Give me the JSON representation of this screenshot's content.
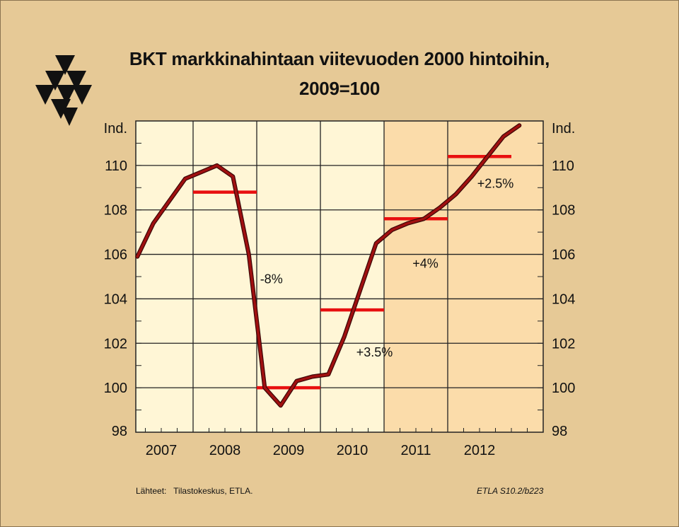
{
  "title_line1": "BKT markkinahintaan viitevuoden 2000 hintoihin,",
  "title_line2": "2009=100",
  "source_label": "Lähteet:",
  "source_text": "Tilastokeskus, ETLA.",
  "code": "ETLA S10.2/b223",
  "colors": {
    "background": "#e6c996",
    "plot_history": "#fff6d6",
    "plot_forecast": "#fbdcaa",
    "line": "#a01010",
    "averages": "#e81010"
  },
  "chart_data": {
    "type": "line",
    "title": "BKT markkinahintaan viitevuoden 2000 hintoihin, 2009=100",
    "ylabel_left": "Ind.",
    "ylabel_right": "Ind.",
    "ylim": [
      98,
      112
    ],
    "xlim": [
      2006.6,
      2013.0
    ],
    "yticks": [
      98,
      100,
      102,
      104,
      106,
      108,
      110
    ],
    "categories": [
      "2007",
      "2008",
      "2009",
      "2010",
      "2011",
      "2012"
    ],
    "forecast_start": 2010.5,
    "grid": true,
    "series": [
      {
        "x": [
          2006.625,
          2006.875,
          2007.125,
          2007.375,
          2007.625,
          2007.875,
          2008.125,
          2008.375,
          2008.625,
          2008.875,
          2009.125,
          2009.375,
          2009.625,
          2009.875,
          2010.125,
          2010.375,
          2010.625,
          2010.875,
          2011.125,
          2011.375,
          2011.625,
          2011.875,
          2012.125,
          2012.375,
          2012.625
        ],
        "values": [
          105.9,
          107.4,
          108.4,
          109.4,
          109.7,
          110.0,
          109.5,
          106.0,
          100.0,
          99.2,
          100.3,
          100.5,
          100.6,
          102.3,
          104.4,
          106.5,
          107.1,
          107.4,
          107.6,
          108.1,
          108.7,
          109.5,
          110.4,
          111.3,
          111.8
        ]
      }
    ],
    "annual_averages": [
      {
        "year": "2008",
        "value": 108.8
      },
      {
        "year": "2009",
        "value": 100.0
      },
      {
        "year": "2010",
        "value": 103.5
      },
      {
        "year": "2011",
        "value": 107.6
      },
      {
        "year": "2012",
        "value": 110.4
      }
    ],
    "annotations": [
      {
        "text": "-8%",
        "x": 2008.73,
        "y": 104.7
      },
      {
        "text": "+3.5%",
        "x": 2010.35,
        "y": 101.4
      },
      {
        "text": "+4%",
        "x": 2011.15,
        "y": 105.4
      },
      {
        "text": "+2.5%",
        "x": 2012.25,
        "y": 109.0
      }
    ]
  }
}
